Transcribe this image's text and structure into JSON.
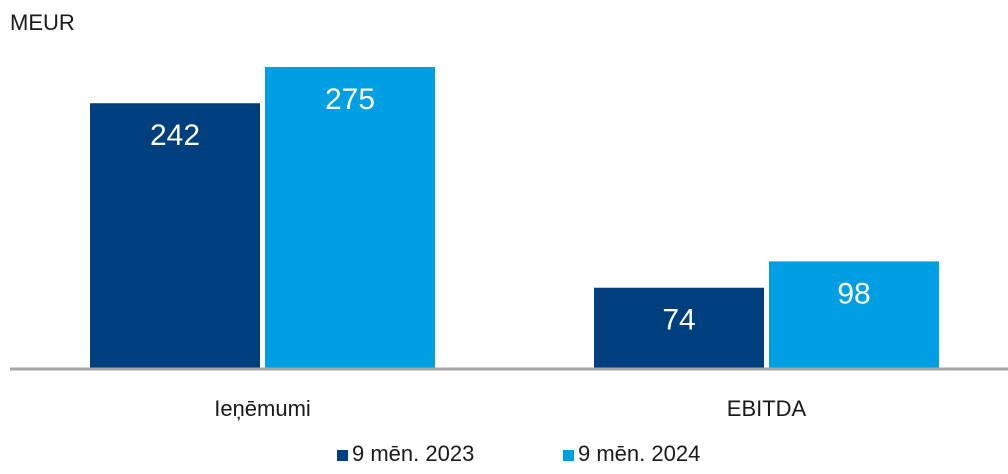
{
  "chart_data": {
    "type": "bar",
    "unit_label": "MEUR",
    "categories": [
      "Ieņēmumi",
      "EBITDA"
    ],
    "series": [
      {
        "name": "9 mēn. 2023",
        "values": [
          242,
          74
        ],
        "color": "#003f7d"
      },
      {
        "name": "9 mēn. 2024",
        "values": [
          275,
          98
        ],
        "color": "#009fe3"
      }
    ],
    "ylim": [
      0,
      275
    ],
    "grid": false,
    "data_labels": true,
    "legend_position": "bottom-center",
    "axis_color": "#a6a6a6",
    "label_text_color": "#ffffff",
    "text_color": "#1a1a1a"
  }
}
